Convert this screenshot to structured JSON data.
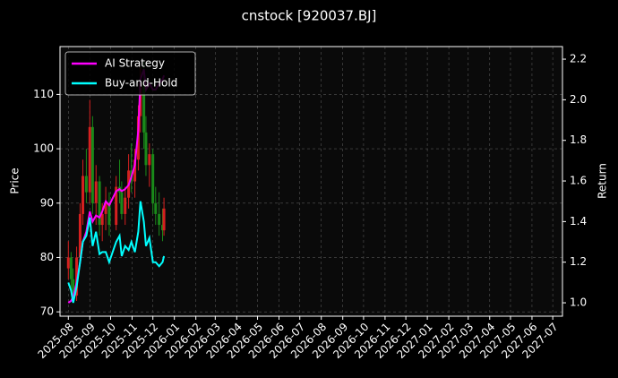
{
  "chart_data": {
    "type": "candlestick_returns",
    "title": "cnstock [920037.BJ]",
    "ylabel": "Price",
    "y2label": "Return",
    "x": [
      "2025-08-01",
      "2025-08-05",
      "2025-08-08",
      "2025-08-13",
      "2025-08-18",
      "2025-08-22",
      "2025-08-27",
      "2025-09-01",
      "2025-09-05",
      "2025-09-10",
      "2025-09-15",
      "2025-09-19",
      "2025-09-24",
      "2025-09-29",
      "2025-10-09",
      "2025-10-14",
      "2025-10-17",
      "2025-10-22",
      "2025-10-27",
      "2025-10-31",
      "2025-11-05",
      "2025-11-10",
      "2025-11-13",
      "2025-11-18",
      "2025-11-21",
      "2025-11-26",
      "2025-12-01",
      "2025-12-05",
      "2025-12-10",
      "2025-12-15",
      "2025-12-17"
    ],
    "open": [
      78,
      80,
      76,
      73,
      80,
      88,
      95,
      92,
      104,
      90,
      94,
      86,
      88,
      90,
      86,
      93,
      92,
      88,
      91,
      96,
      94,
      98,
      106,
      112,
      103,
      97,
      99,
      90,
      88,
      86,
      85
    ],
    "high": [
      83,
      81,
      78,
      82,
      90,
      98,
      100,
      109,
      106,
      97,
      95,
      90,
      93,
      92,
      95,
      98,
      94,
      93,
      99,
      101,
      100,
      108,
      115,
      116,
      106,
      101,
      100,
      93,
      92,
      89,
      91
    ],
    "low": [
      76,
      74,
      72,
      72,
      79,
      86,
      90,
      90,
      88,
      86,
      84,
      83,
      85,
      84,
      85,
      90,
      87,
      86,
      89,
      92,
      91,
      96,
      103,
      100,
      95,
      93,
      88,
      86,
      84,
      83,
      84
    ],
    "close": [
      80,
      76,
      73,
      80,
      88,
      95,
      92,
      104,
      90,
      94,
      86,
      88,
      90,
      86,
      93,
      92,
      88,
      91,
      96,
      94,
      98,
      106,
      112,
      103,
      97,
      99,
      90,
      88,
      86,
      85,
      89
    ],
    "up_color": "#d62020",
    "down_color": "#1a8a1a",
    "series": [
      {
        "name": "AI Strategy",
        "color": "#ff00ff",
        "axis": "y2",
        "values": [
          1.0,
          1.01,
          1.03,
          1.1,
          1.2,
          1.3,
          1.35,
          1.45,
          1.4,
          1.43,
          1.42,
          1.45,
          1.5,
          1.48,
          1.55,
          1.56,
          1.55,
          1.56,
          1.58,
          1.62,
          1.68,
          1.85,
          2.1,
          2.15,
          2.05,
          2.08,
          2.05,
          2.05,
          2.08,
          2.1,
          2.12
        ]
      },
      {
        "name": "Buy-and-Hold",
        "color": "#00ffff",
        "axis": "y2",
        "values": [
          1.1,
          1.06,
          1.0,
          1.08,
          1.2,
          1.3,
          1.33,
          1.42,
          1.28,
          1.35,
          1.24,
          1.25,
          1.25,
          1.2,
          1.3,
          1.33,
          1.23,
          1.28,
          1.26,
          1.3,
          1.25,
          1.35,
          1.5,
          1.4,
          1.28,
          1.32,
          1.2,
          1.2,
          1.18,
          1.2,
          1.23
        ]
      }
    ],
    "xlim": [
      "2025-07-20",
      "2027-07-15"
    ],
    "xticks": [
      {
        "value": "2025-08-01",
        "label": "2025-08"
      },
      {
        "value": "2025-09-01",
        "label": "2025-09"
      },
      {
        "value": "2025-10-01",
        "label": "2025-10"
      },
      {
        "value": "2025-11-01",
        "label": "2025-11"
      },
      {
        "value": "2025-12-01",
        "label": "2025-12"
      },
      {
        "value": "2026-01-01",
        "label": "2026-01"
      },
      {
        "value": "2026-02-01",
        "label": "2026-02"
      },
      {
        "value": "2026-03-01",
        "label": "2026-03"
      },
      {
        "value": "2026-04-01",
        "label": "2026-04"
      },
      {
        "value": "2026-05-01",
        "label": "2026-05"
      },
      {
        "value": "2026-06-01",
        "label": "2026-06"
      },
      {
        "value": "2026-07-01",
        "label": "2026-07"
      },
      {
        "value": "2026-08-01",
        "label": "2026-08"
      },
      {
        "value": "2026-09-01",
        "label": "2026-09"
      },
      {
        "value": "2026-10-01",
        "label": "2026-10"
      },
      {
        "value": "2026-11-01",
        "label": "2026-11"
      },
      {
        "value": "2026-12-01",
        "label": "2026-12"
      },
      {
        "value": "2027-01-01",
        "label": "2027-01"
      },
      {
        "value": "2027-02-01",
        "label": "2027-02"
      },
      {
        "value": "2027-03-01",
        "label": "2027-03"
      },
      {
        "value": "2027-04-01",
        "label": "2027-04"
      },
      {
        "value": "2027-05-01",
        "label": "2027-05"
      },
      {
        "value": "2027-06-01",
        "label": "2027-06"
      },
      {
        "value": "2027-07-01",
        "label": "2027-07"
      }
    ],
    "ylim": [
      69.2,
      118.8
    ],
    "yticks": [
      70,
      80,
      90,
      100,
      110
    ],
    "y2lim": [
      0.934,
      2.262
    ],
    "y2ticks": [
      {
        "value": 1,
        "label": "1.0"
      },
      {
        "value": 1.2,
        "label": "1.2"
      },
      {
        "value": 1.4,
        "label": "1.4"
      },
      {
        "value": 1.6,
        "label": "1.6"
      },
      {
        "value": 1.8,
        "label": "1.8"
      },
      {
        "value": 2,
        "label": "2.0"
      },
      {
        "value": 2.2,
        "label": "2.2"
      }
    ],
    "grid": true,
    "legend": "upper left"
  }
}
